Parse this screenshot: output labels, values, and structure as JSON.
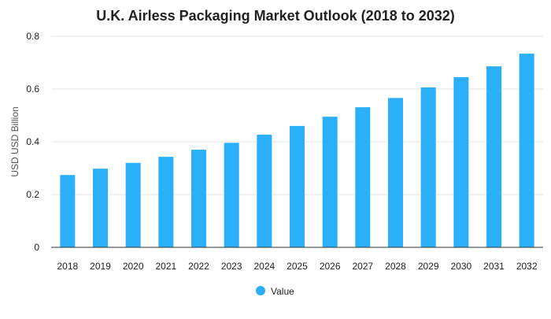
{
  "chart_data": {
    "type": "bar",
    "title": "U.K. Airless Packaging Market Outlook (2018 to 2032)",
    "xlabel": "",
    "ylabel": "USD USD Billion",
    "categories": [
      "2018",
      "2019",
      "2020",
      "2021",
      "2022",
      "2023",
      "2024",
      "2025",
      "2026",
      "2027",
      "2028",
      "2029",
      "2030",
      "2031",
      "2032"
    ],
    "series": [
      {
        "name": "Value",
        "values": [
          0.274,
          0.298,
          0.32,
          0.343,
          0.37,
          0.396,
          0.427,
          0.46,
          0.495,
          0.531,
          0.566,
          0.606,
          0.645,
          0.686,
          0.734
        ]
      }
    ],
    "ylim": [
      0,
      0.8
    ],
    "yticks": [
      "0",
      "0.2",
      "0.4",
      "0.6",
      "0.8"
    ],
    "grid": true,
    "legend_position": "bottom-center",
    "colors": {
      "bar": "#2ab0f8",
      "grid": "#e6e6e6",
      "axis": "#333333"
    }
  }
}
